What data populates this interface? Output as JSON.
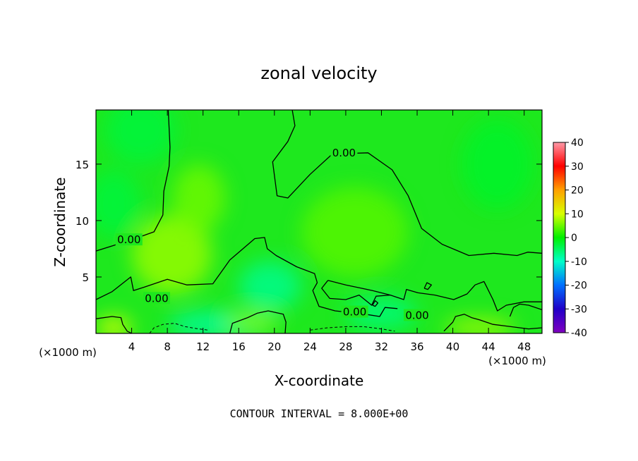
{
  "chart_data": {
    "type": "heatmap",
    "title": "zonal velocity",
    "xlabel": "X-coordinate",
    "ylabel": "Z-coordinate",
    "x_units": "(×1000 m)",
    "footer": "CONTOUR INTERVAL = 8.000E+00",
    "xlim": [
      0,
      50
    ],
    "ylim": [
      0,
      19.8
    ],
    "x_ticks": [
      4,
      8,
      12,
      16,
      20,
      24,
      28,
      32,
      36,
      40,
      44,
      48
    ],
    "y_ticks": [
      5,
      10,
      15
    ],
    "colorbar": {
      "min": -40,
      "max": 40,
      "ticks": [
        40,
        30,
        20,
        10,
        0,
        -10,
        -20,
        -30,
        -40
      ],
      "colors": [
        "#ff9aa8",
        "#ff0000",
        "#ffa000",
        "#d8ff00",
        "#00f000",
        "#00ffc8",
        "#0070ff",
        "#2000c8",
        "#8000c0"
      ]
    },
    "contour_interval": 8.0,
    "contour_labels": [
      {
        "text": "0.00",
        "x": 27.8,
        "z": 16.0
      },
      {
        "text": "0.00",
        "x": 3.7,
        "z": 8.3
      },
      {
        "text": "0.00",
        "x": 6.8,
        "z": 3.1
      },
      {
        "text": "0.00",
        "x": 29.0,
        "z": 1.9
      },
      {
        "text": "0.00",
        "x": 36.0,
        "z": 1.6
      }
    ],
    "zero_contours": [
      [
        [
          0,
          7.3
        ],
        [
          2,
          7.8
        ],
        [
          4,
          8.3
        ],
        [
          6.5,
          9.0
        ],
        [
          7.5,
          10.5
        ],
        [
          7.6,
          12.6
        ],
        [
          8.2,
          14.8
        ],
        [
          8.3,
          16.5
        ],
        [
          8.1,
          19.8
        ]
      ],
      [
        [
          22.0,
          19.8
        ],
        [
          22.3,
          18.4
        ],
        [
          21.5,
          17.0
        ],
        [
          19.8,
          15.2
        ],
        [
          20.3,
          12.2
        ],
        [
          21.5,
          12.0
        ],
        [
          24.0,
          14.1
        ],
        [
          26.5,
          15.9
        ],
        [
          30.5,
          16.0
        ],
        [
          33.2,
          14.5
        ],
        [
          35.0,
          12.2
        ],
        [
          36.5,
          9.3
        ],
        [
          38.8,
          7.9
        ],
        [
          41.8,
          6.9
        ],
        [
          44.6,
          7.1
        ],
        [
          47.2,
          6.9
        ],
        [
          48.4,
          7.2
        ],
        [
          50,
          7.1
        ]
      ],
      [
        [
          0,
          3.0
        ],
        [
          1.8,
          3.7
        ],
        [
          3.9,
          5.0
        ],
        [
          4.2,
          3.8
        ],
        [
          5.4,
          4.1
        ],
        [
          8.0,
          4.8
        ],
        [
          10.2,
          4.3
        ],
        [
          13.1,
          4.4
        ],
        [
          15.0,
          6.5
        ],
        [
          17.8,
          8.4
        ],
        [
          18.9,
          8.5
        ],
        [
          19.2,
          7.5
        ],
        [
          20.2,
          6.9
        ],
        [
          22.5,
          5.9
        ],
        [
          24.5,
          5.3
        ],
        [
          24.8,
          4.5
        ],
        [
          24.3,
          3.8
        ],
        [
          25.0,
          2.4
        ],
        [
          26.8,
          2.0
        ],
        [
          28.0,
          1.9
        ],
        [
          30.2,
          1.7
        ],
        [
          31.8,
          1.5
        ],
        [
          32.4,
          2.3
        ],
        [
          33.8,
          2.2
        ]
      ],
      [
        [
          26.0,
          4.7
        ],
        [
          28.0,
          4.3
        ],
        [
          31.0,
          3.8
        ],
        [
          33.0,
          3.4
        ],
        [
          34.5,
          3.0
        ],
        [
          34.8,
          3.9
        ],
        [
          36.1,
          3.6
        ],
        [
          38.0,
          3.4
        ],
        [
          40.1,
          3.0
        ],
        [
          41.6,
          3.5
        ],
        [
          42.5,
          4.3
        ],
        [
          43.5,
          4.6
        ],
        [
          44.5,
          3.0
        ],
        [
          45.0,
          2.0
        ],
        [
          46.0,
          2.5
        ],
        [
          48.0,
          2.8
        ],
        [
          50,
          2.8
        ]
      ],
      [
        [
          26.0,
          4.7
        ],
        [
          25.3,
          4.0
        ],
        [
          26.2,
          3.1
        ],
        [
          28.0,
          3.0
        ],
        [
          29.5,
          3.4
        ],
        [
          30.9,
          2.5
        ],
        [
          31.4,
          3.3
        ],
        [
          33.0,
          3.4
        ]
      ],
      [
        [
          0,
          1.3
        ],
        [
          1.8,
          1.5
        ],
        [
          2.8,
          1.4
        ],
        [
          3.0,
          0.8
        ],
        [
          3.5,
          0.2
        ],
        [
          4.0,
          0
        ]
      ],
      [
        [
          15.0,
          0
        ],
        [
          15.3,
          0.9
        ],
        [
          17.0,
          1.4
        ],
        [
          18.1,
          1.8
        ],
        [
          19.3,
          2.0
        ],
        [
          21.0,
          1.7
        ],
        [
          21.3,
          1.0
        ],
        [
          21.2,
          0
        ]
      ],
      [
        [
          39.0,
          0.2
        ],
        [
          40.0,
          1.0
        ],
        [
          40.3,
          1.5
        ],
        [
          41.3,
          1.7
        ],
        [
          42.1,
          1.4
        ],
        [
          43.0,
          1.2
        ],
        [
          44.5,
          0.8
        ],
        [
          46.5,
          0.6
        ],
        [
          48.5,
          0.4
        ],
        [
          50,
          0.5
        ]
      ],
      [
        [
          46.4,
          1.5
        ],
        [
          46.8,
          2.3
        ],
        [
          47.5,
          2.6
        ],
        [
          48.5,
          2.5
        ],
        [
          50,
          2.1
        ]
      ],
      [
        [
          36.8,
          4.0
        ],
        [
          37.1,
          4.5
        ],
        [
          37.6,
          4.3
        ],
        [
          37.2,
          3.9
        ],
        [
          36.8,
          4.0
        ]
      ],
      [
        [
          31.0,
          2.5
        ],
        [
          31.3,
          2.9
        ],
        [
          31.6,
          2.7
        ],
        [
          31.3,
          2.4
        ],
        [
          31.0,
          2.5
        ]
      ]
    ],
    "negative_contours": [
      [
        [
          6.0,
          0
        ],
        [
          6.5,
          0.5
        ],
        [
          7.5,
          0.8
        ],
        [
          8.8,
          0.9
        ],
        [
          10.0,
          0.6
        ],
        [
          11.5,
          0.4
        ],
        [
          12.5,
          0.3
        ]
      ],
      [
        [
          24.0,
          0.3
        ],
        [
          26.0,
          0.5
        ],
        [
          28.0,
          0.6
        ],
        [
          30.0,
          0.6
        ],
        [
          32.0,
          0.4
        ],
        [
          33.5,
          0.2
        ]
      ]
    ],
    "color_field": [
      {
        "x": 8.5,
        "z": 7.0,
        "v": 7,
        "rx": 4.5,
        "rz": 3.5
      },
      {
        "x": 11.5,
        "z": 12.0,
        "v": 5,
        "rx": 3.0,
        "rz": 3.0
      },
      {
        "x": 29.0,
        "z": 9.0,
        "v": 4,
        "rx": 6.0,
        "rz": 4.0
      },
      {
        "x": 5.0,
        "z": 18.0,
        "v": -3,
        "rx": 4.0,
        "rz": 3.0
      },
      {
        "x": 2.0,
        "z": 11.5,
        "v": -3,
        "rx": 3.0,
        "rz": 3.0
      },
      {
        "x": 19.5,
        "z": 4.2,
        "v": -7,
        "rx": 3.5,
        "rz": 2.2
      },
      {
        "x": 14.0,
        "z": 0.8,
        "v": -8,
        "rx": 6.0,
        "rz": 1.2
      },
      {
        "x": 32.0,
        "z": 1.8,
        "v": -6,
        "rx": 4.0,
        "rz": 1.5
      },
      {
        "x": 2.0,
        "z": 0.5,
        "v": 10,
        "rx": 2.0,
        "rz": 1.0
      },
      {
        "x": 43.0,
        "z": 0.5,
        "v": 8,
        "rx": 4.0,
        "rz": 0.8
      },
      {
        "x": 17.5,
        "z": 1.0,
        "v": 6,
        "rx": 3.0,
        "rz": 0.9
      },
      {
        "x": 45.0,
        "z": 15.0,
        "v": -2,
        "rx": 4.0,
        "rz": 4.0
      }
    ],
    "grid": false,
    "legend": "right (colorbar)"
  }
}
